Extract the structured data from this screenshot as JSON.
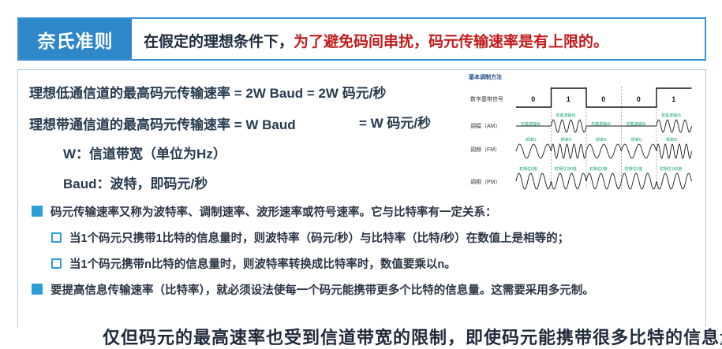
{
  "header": {
    "tab_title": "奈氏准则",
    "text_plain": "在假定的理想条件下，",
    "text_red": "为了避免码间串扰，码元传输速率是有上限的。"
  },
  "formulas": {
    "line1": "理想低通信道的最高码元传输速率 = 2W Baud = 2W 码元/秒",
    "line2_a": "理想带通信道的最高码元传输速率 = W Baud",
    "line2_b": "= W 码元/秒",
    "line3": "W：信道带宽（单位为Hz）",
    "line4": "Baud：波特，即码元/秒"
  },
  "bullets": {
    "b1": "码元传输速率又称为波特率、调制速率、波形速率或符号速率。它与比特率有一定关系：",
    "b1_sub1": "当1个码元只携带1比特的信息量时，则波特率（码元/秒）与比特率（比特/秒）在数值上是相等的；",
    "b1_sub2": "当1个码元携带n比特的信息量时，则波特率转换成比特率时，数值要乘以n。",
    "b2": "要提高信息传输速率（比特率），就必须设法使每一个码元能携带更多个比特的信息量。这需要采用多元制。"
  },
  "diagram": {
    "title": "基本调制方法",
    "row_digital": "数字基带信号",
    "row_am": "调幅（AM）",
    "row_fm": "调频（FM）",
    "row_pm": "调相（PM）",
    "bits": [
      "0",
      "1",
      "0",
      "0",
      "1"
    ],
    "am_labels": [
      "无载波输出",
      "有载波输出",
      "无载波输出",
      "无载波输出",
      "有载波输出"
    ],
    "fm_labels": [
      "频率f1",
      "频率f2",
      "频率f1",
      "频率f1",
      "频率f2"
    ],
    "pm_labels": [
      "初相位0度",
      "初相位180度",
      "初相位0度",
      "初相位0度",
      "初相位180度"
    ],
    "colors": {
      "label_green": "#13a36a",
      "label_blue": "#2a7fc9",
      "wave": "#1a1a1a"
    }
  },
  "cut_off_text": "仅但码元的最高速率也受到信道带宽的限制，即使码元能携带很多比特的信息量"
}
